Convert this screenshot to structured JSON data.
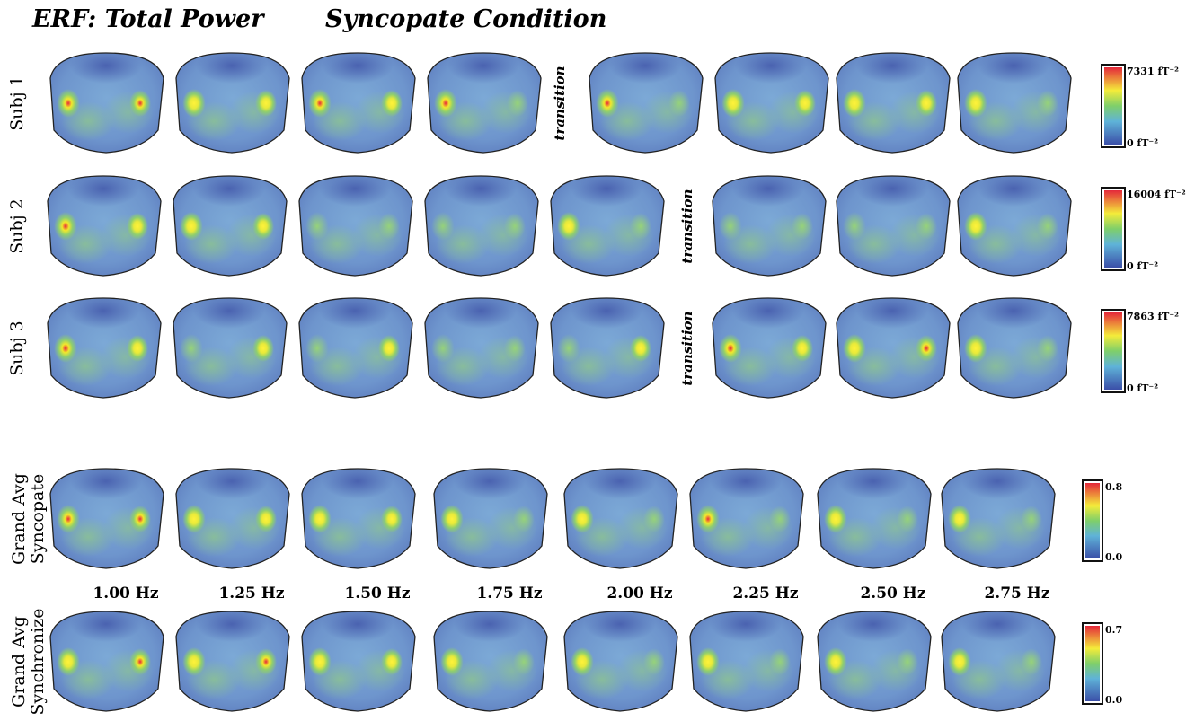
{
  "header": {
    "title": "ERF: Total Power",
    "condition": "Syncopate Condition"
  },
  "rows": [
    {
      "label": "Subj 1",
      "transition": "transition",
      "scale_max": "7331 fT⁻²",
      "scale_min": "0 fT⁻²"
    },
    {
      "label": "Subj 2",
      "transition": "transition",
      "scale_max": "16004 fT⁻²",
      "scale_min": "0 fT⁻²"
    },
    {
      "label": "Subj 3",
      "transition": "transition",
      "scale_max": "7863 fT⁻²",
      "scale_min": "0 fT⁻²"
    }
  ],
  "grand_average": [
    {
      "label": [
        "Grand Avg",
        "Syncopate"
      ],
      "scale_max": "0.8",
      "scale_min": "0.0"
    },
    {
      "label": [
        "Grand Avg",
        "Synchronize"
      ],
      "scale_max": "0.7",
      "scale_min": "0.0"
    }
  ],
  "frequencies": [
    "1.00 Hz",
    "1.25 Hz",
    "1.50 Hz",
    "1.75 Hz",
    "2.00 Hz",
    "2.25 Hz",
    "2.50 Hz",
    "2.75 Hz"
  ]
}
